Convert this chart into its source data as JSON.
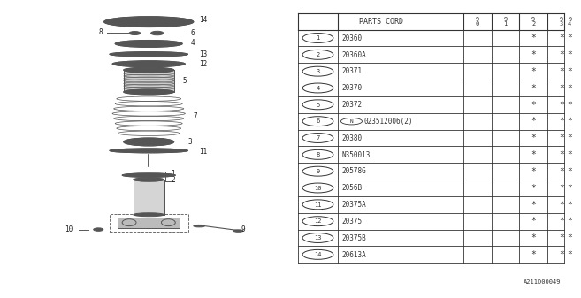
{
  "title": "",
  "bg_color": "#ffffff",
  "diagram_label": "A211D00049",
  "table_header": "PARTS CORD",
  "columns": [
    "9\n0",
    "9\n1",
    "9\n2",
    "9\n3",
    "9\n4"
  ],
  "rows": [
    {
      "num": 1,
      "part": "20360",
      "marks": [
        false,
        false,
        true,
        true,
        true
      ]
    },
    {
      "num": 2,
      "part": "20360A",
      "marks": [
        false,
        false,
        true,
        true,
        true
      ]
    },
    {
      "num": 3,
      "part": "20371",
      "marks": [
        false,
        false,
        true,
        true,
        true
      ]
    },
    {
      "num": 4,
      "part": "20370",
      "marks": [
        false,
        false,
        true,
        true,
        true
      ]
    },
    {
      "num": 5,
      "part": "20372",
      "marks": [
        false,
        false,
        true,
        true,
        true
      ]
    },
    {
      "num": 6,
      "part": "N023512006(2)",
      "marks": [
        false,
        false,
        true,
        true,
        true
      ]
    },
    {
      "num": 7,
      "part": "20380",
      "marks": [
        false,
        false,
        true,
        true,
        true
      ]
    },
    {
      "num": 8,
      "part": "N350013",
      "marks": [
        false,
        false,
        true,
        true,
        true
      ]
    },
    {
      "num": 9,
      "part": "20578G",
      "marks": [
        false,
        false,
        true,
        true,
        true
      ]
    },
    {
      "num": 10,
      "part": "2056B",
      "marks": [
        false,
        false,
        true,
        true,
        true
      ]
    },
    {
      "num": 11,
      "part": "20375A",
      "marks": [
        false,
        false,
        true,
        true,
        true
      ]
    },
    {
      "num": 12,
      "part": "20375",
      "marks": [
        false,
        false,
        true,
        true,
        true
      ]
    },
    {
      "num": 13,
      "part": "20375B",
      "marks": [
        false,
        false,
        true,
        true,
        true
      ]
    },
    {
      "num": 14,
      "part": "20613A",
      "marks": [
        false,
        false,
        true,
        true,
        true
      ]
    }
  ]
}
